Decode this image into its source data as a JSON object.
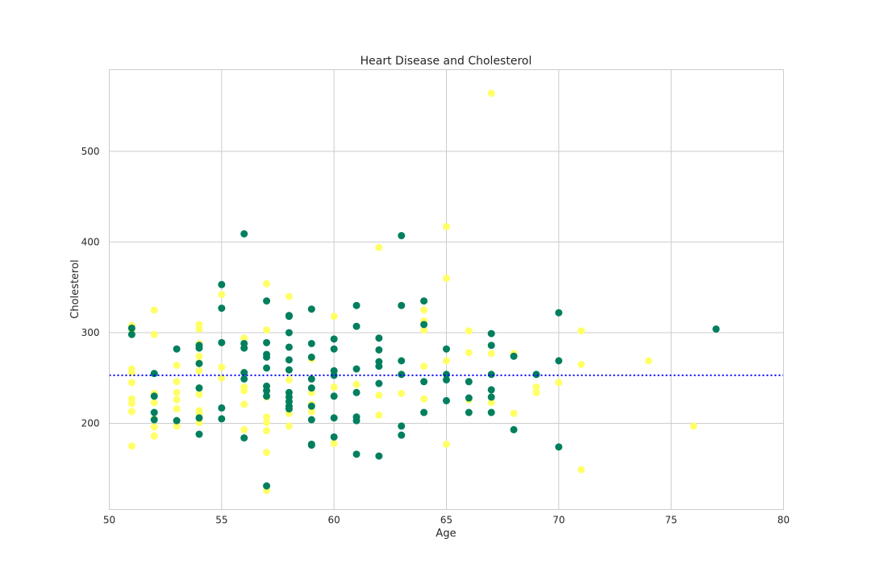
{
  "chart_data": {
    "type": "scatter",
    "title": "Heart Disease and Cholesterol",
    "xlabel": "Age",
    "ylabel": "Cholesterol",
    "xlim": [
      50,
      80
    ],
    "ylim": [
      105,
      590
    ],
    "xticks": [
      50,
      55,
      60,
      65,
      70,
      75,
      80
    ],
    "yticks": [
      200,
      300,
      400,
      500
    ],
    "grid": true,
    "legend": "none",
    "reference_line": {
      "y": 253,
      "style": "dotted",
      "color": "#0000ff"
    },
    "series": [
      {
        "color": "#ffff66",
        "points": [
          [
            51,
            308
          ],
          [
            51,
            303
          ],
          [
            51,
            260
          ],
          [
            51,
            256
          ],
          [
            51,
            245
          ],
          [
            51,
            227
          ],
          [
            51,
            222
          ],
          [
            51,
            213
          ],
          [
            51,
            175
          ],
          [
            52,
            325
          ],
          [
            52,
            298
          ],
          [
            52,
            233
          ],
          [
            52,
            223
          ],
          [
            52,
            205
          ],
          [
            52,
            196
          ],
          [
            52,
            186
          ],
          [
            53,
            264
          ],
          [
            53,
            246
          ],
          [
            53,
            234
          ],
          [
            53,
            226
          ],
          [
            53,
            216
          ],
          [
            53,
            203
          ],
          [
            53,
            197
          ],
          [
            54,
            309
          ],
          [
            54,
            304
          ],
          [
            54,
            288
          ],
          [
            54,
            274
          ],
          [
            54,
            267
          ],
          [
            54,
            258
          ],
          [
            54,
            239
          ],
          [
            54,
            232
          ],
          [
            54,
            214
          ],
          [
            54,
            211
          ],
          [
            54,
            201
          ],
          [
            55,
            342
          ],
          [
            55,
            262
          ],
          [
            55,
            250
          ],
          [
            56,
            294
          ],
          [
            56,
            288
          ],
          [
            56,
            256
          ],
          [
            56,
            240
          ],
          [
            56,
            236
          ],
          [
            56,
            221
          ],
          [
            56,
            193
          ],
          [
            57,
            354
          ],
          [
            57,
            303
          ],
          [
            57,
            241
          ],
          [
            57,
            236
          ],
          [
            57,
            229
          ],
          [
            57,
            207
          ],
          [
            57,
            201
          ],
          [
            57,
            192
          ],
          [
            57,
            168
          ],
          [
            57,
            126
          ],
          [
            58,
            340
          ],
          [
            58,
            248
          ],
          [
            58,
            230
          ],
          [
            58,
            225
          ],
          [
            58,
            218
          ],
          [
            58,
            211
          ],
          [
            58,
            197
          ],
          [
            59,
            271
          ],
          [
            59,
            239
          ],
          [
            59,
            234
          ],
          [
            59,
            221
          ],
          [
            59,
            213
          ],
          [
            59,
            204
          ],
          [
            59,
            177
          ],
          [
            60,
            318
          ],
          [
            60,
            258
          ],
          [
            60,
            240
          ],
          [
            60,
            178
          ],
          [
            61,
            243
          ],
          [
            62,
            394
          ],
          [
            62,
            268
          ],
          [
            62,
            231
          ],
          [
            62,
            209
          ],
          [
            63,
            254
          ],
          [
            63,
            233
          ],
          [
            64,
            325
          ],
          [
            64,
            313
          ],
          [
            64,
            303
          ],
          [
            64,
            263
          ],
          [
            64,
            227
          ],
          [
            65,
            417
          ],
          [
            65,
            360
          ],
          [
            65,
            269
          ],
          [
            65,
            177
          ],
          [
            66,
            302
          ],
          [
            66,
            278
          ],
          [
            66,
            226
          ],
          [
            67,
            564
          ],
          [
            67,
            277
          ],
          [
            67,
            223
          ],
          [
            68,
            277
          ],
          [
            68,
            211
          ],
          [
            69,
            240
          ],
          [
            69,
            234
          ],
          [
            70,
            245
          ],
          [
            71,
            302
          ],
          [
            71,
            265
          ],
          [
            71,
            149
          ],
          [
            74,
            269
          ],
          [
            76,
            197
          ]
        ]
      },
      {
        "color": "#007f5f",
        "points": [
          [
            51,
            305
          ],
          [
            51,
            298
          ],
          [
            52,
            255
          ],
          [
            52,
            230
          ],
          [
            52,
            212
          ],
          [
            52,
            204
          ],
          [
            53,
            282
          ],
          [
            53,
            203
          ],
          [
            54,
            286
          ],
          [
            54,
            283
          ],
          [
            54,
            266
          ],
          [
            54,
            239
          ],
          [
            54,
            206
          ],
          [
            54,
            188
          ],
          [
            55,
            353
          ],
          [
            55,
            327
          ],
          [
            55,
            289
          ],
          [
            55,
            217
          ],
          [
            55,
            205
          ],
          [
            56,
            409
          ],
          [
            56,
            288
          ],
          [
            56,
            283
          ],
          [
            56,
            256
          ],
          [
            56,
            249
          ],
          [
            56,
            184
          ],
          [
            57,
            335
          ],
          [
            57,
            289
          ],
          [
            57,
            276
          ],
          [
            57,
            273
          ],
          [
            57,
            261
          ],
          [
            57,
            241
          ],
          [
            57,
            236
          ],
          [
            57,
            230
          ],
          [
            57,
            131
          ],
          [
            58,
            319
          ],
          [
            58,
            318
          ],
          [
            58,
            300
          ],
          [
            58,
            284
          ],
          [
            58,
            270
          ],
          [
            58,
            259
          ],
          [
            58,
            234
          ],
          [
            58,
            229
          ],
          [
            58,
            224
          ],
          [
            58,
            219
          ],
          [
            58,
            216
          ],
          [
            59,
            326
          ],
          [
            59,
            288
          ],
          [
            59,
            273
          ],
          [
            59,
            249
          ],
          [
            59,
            239
          ],
          [
            59,
            219
          ],
          [
            59,
            204
          ],
          [
            59,
            177
          ],
          [
            59,
            176
          ],
          [
            60,
            293
          ],
          [
            60,
            282
          ],
          [
            60,
            258
          ],
          [
            60,
            253
          ],
          [
            60,
            230
          ],
          [
            60,
            206
          ],
          [
            60,
            185
          ],
          [
            61,
            330
          ],
          [
            61,
            307
          ],
          [
            61,
            260
          ],
          [
            61,
            234
          ],
          [
            61,
            207
          ],
          [
            61,
            203
          ],
          [
            61,
            166
          ],
          [
            62,
            294
          ],
          [
            62,
            281
          ],
          [
            62,
            268
          ],
          [
            62,
            263
          ],
          [
            62,
            244
          ],
          [
            62,
            164
          ],
          [
            63,
            407
          ],
          [
            63,
            330
          ],
          [
            63,
            269
          ],
          [
            63,
            254
          ],
          [
            63,
            197
          ],
          [
            63,
            187
          ],
          [
            64,
            335
          ],
          [
            64,
            309
          ],
          [
            64,
            246
          ],
          [
            64,
            212
          ],
          [
            65,
            282
          ],
          [
            65,
            254
          ],
          [
            65,
            248
          ],
          [
            65,
            225
          ],
          [
            66,
            246
          ],
          [
            66,
            228
          ],
          [
            66,
            212
          ],
          [
            67,
            299
          ],
          [
            67,
            286
          ],
          [
            67,
            254
          ],
          [
            67,
            237
          ],
          [
            67,
            229
          ],
          [
            67,
            212
          ],
          [
            68,
            274
          ],
          [
            68,
            193
          ],
          [
            69,
            254
          ],
          [
            70,
            322
          ],
          [
            70,
            269
          ],
          [
            70,
            174
          ],
          [
            77,
            304
          ]
        ]
      }
    ]
  }
}
